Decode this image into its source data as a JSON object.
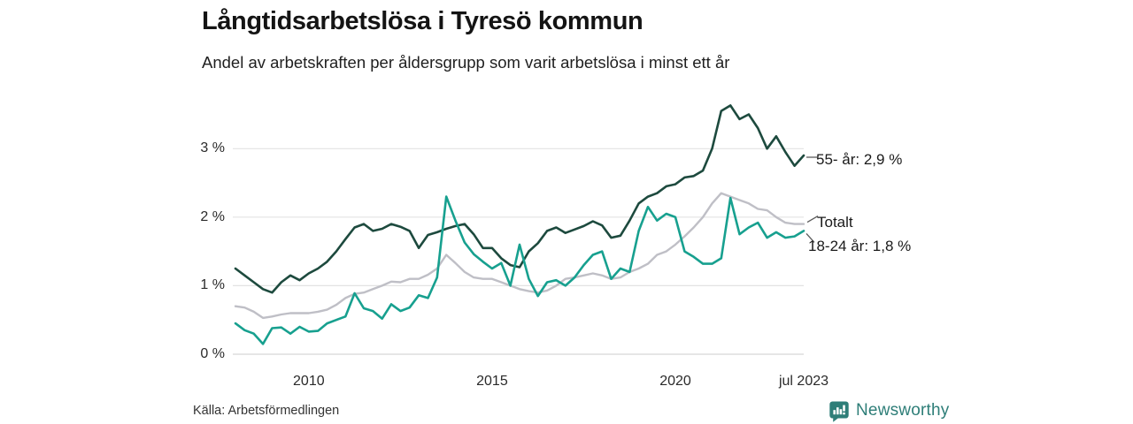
{
  "header": {
    "title": "Långtidsarbetslösa i Tyresö kommun",
    "subtitle": "Andel av arbetskraften per åldersgrupp som varit arbetslösa i minst ett år"
  },
  "footer": {
    "source": "Källa: Arbetsförmedlingen",
    "brand": "Newsworthy",
    "brand_icon": "bar-chart-speech-bubble-icon"
  },
  "colors": {
    "series_55": "#1d4a3e",
    "series_total": "#bfbfc6",
    "series_1824": "#17a08f",
    "grid": "#e3e3e3",
    "baseline": "#d6d6d6",
    "leader": "#5a5a5a",
    "brand_teal": "#2e7e78",
    "text": "#1a1a1a"
  },
  "chart_data": {
    "type": "line",
    "title": "Långtidsarbetslösa i Tyresö kommun",
    "subtitle": "Andel av arbetskraften per åldersgrupp som varit arbetslösa i minst ett år",
    "xlabel": "",
    "ylabel": "",
    "unit": "% av arbetskraften",
    "grid": "horizontal",
    "legend_position": "right-end-labels",
    "xlim": [
      2008,
      2023.5
    ],
    "ylim": [
      0,
      3.88
    ],
    "xticks": [
      "2010",
      "2015",
      "2020",
      "jul 2023"
    ],
    "xtick_values": [
      2010,
      2015,
      2020,
      2023.5
    ],
    "yticks": [
      "0 %",
      "1 %",
      "2 %",
      "3 %"
    ],
    "ytick_values": [
      0,
      1,
      2,
      3
    ],
    "x": [
      2008,
      2008.25,
      2008.5,
      2008.75,
      2009,
      2009.25,
      2009.5,
      2009.75,
      2010,
      2010.25,
      2010.5,
      2010.75,
      2011,
      2011.25,
      2011.5,
      2011.75,
      2012,
      2012.25,
      2012.5,
      2012.75,
      2013,
      2013.25,
      2013.5,
      2013.75,
      2014,
      2014.25,
      2014.5,
      2014.75,
      2015,
      2015.25,
      2015.5,
      2015.75,
      2016,
      2016.25,
      2016.5,
      2016.75,
      2017,
      2017.25,
      2017.5,
      2017.75,
      2018,
      2018.25,
      2018.5,
      2018.75,
      2019,
      2019.25,
      2019.5,
      2019.75,
      2020,
      2020.25,
      2020.5,
      2020.75,
      2021,
      2021.25,
      2021.5,
      2021.75,
      2022,
      2022.25,
      2022.5,
      2022.75,
      2023,
      2023.25,
      2023.5
    ],
    "series": [
      {
        "name": "55- år",
        "end_label": "55- år: 2,9 %",
        "last_value_label": "2,9 %",
        "color": "#1d4a3e",
        "stroke_width": 2.6,
        "values": [
          1.25,
          1.15,
          1.05,
          0.95,
          0.9,
          1.05,
          1.15,
          1.08,
          1.18,
          1.25,
          1.35,
          1.5,
          1.68,
          1.85,
          1.9,
          1.8,
          1.83,
          1.9,
          1.86,
          1.8,
          1.55,
          1.74,
          1.78,
          1.83,
          1.87,
          1.9,
          1.75,
          1.55,
          1.55,
          1.4,
          1.3,
          1.27,
          1.5,
          1.62,
          1.8,
          1.85,
          1.77,
          1.82,
          1.87,
          1.94,
          1.88,
          1.7,
          1.73,
          1.95,
          2.2,
          2.3,
          2.35,
          2.45,
          2.48,
          2.58,
          2.6,
          2.68,
          3.0,
          3.55,
          3.63,
          3.43,
          3.5,
          3.3,
          3.0,
          3.18,
          2.95,
          2.75,
          2.9
        ]
      },
      {
        "name": "Totalt",
        "end_label": "Totalt",
        "last_value_label": "",
        "color": "#bfbfc6",
        "stroke_width": 2.4,
        "values": [
          0.7,
          0.68,
          0.62,
          0.53,
          0.55,
          0.58,
          0.6,
          0.6,
          0.6,
          0.62,
          0.65,
          0.72,
          0.82,
          0.88,
          0.9,
          0.95,
          1.0,
          1.06,
          1.05,
          1.1,
          1.1,
          1.16,
          1.25,
          1.45,
          1.33,
          1.2,
          1.12,
          1.1,
          1.1,
          1.05,
          1.0,
          0.95,
          0.92,
          0.9,
          0.93,
          1.0,
          1.1,
          1.12,
          1.15,
          1.18,
          1.15,
          1.1,
          1.12,
          1.2,
          1.25,
          1.32,
          1.45,
          1.5,
          1.6,
          1.72,
          1.85,
          2.0,
          2.2,
          2.35,
          2.3,
          2.25,
          2.2,
          2.12,
          2.1,
          2.0,
          1.92,
          1.9,
          1.9
        ]
      },
      {
        "name": "18-24 år",
        "end_label": "18-24 år: 1,8 %",
        "last_value_label": "1,8 %",
        "color": "#17a08f",
        "stroke_width": 2.6,
        "values": [
          0.45,
          0.35,
          0.3,
          0.15,
          0.38,
          0.39,
          0.3,
          0.4,
          0.33,
          0.34,
          0.45,
          0.5,
          0.55,
          0.89,
          0.67,
          0.63,
          0.52,
          0.73,
          0.63,
          0.68,
          0.86,
          0.82,
          1.12,
          2.3,
          1.95,
          1.63,
          1.46,
          1.35,
          1.25,
          1.33,
          1.0,
          1.6,
          1.1,
          0.85,
          1.05,
          1.08,
          1.0,
          1.12,
          1.3,
          1.45,
          1.5,
          1.1,
          1.25,
          1.2,
          1.8,
          2.15,
          1.95,
          2.05,
          2.0,
          1.5,
          1.42,
          1.32,
          1.32,
          1.4,
          2.28,
          1.75,
          1.85,
          1.92,
          1.7,
          1.78,
          1.7,
          1.72,
          1.8
        ]
      }
    ]
  }
}
